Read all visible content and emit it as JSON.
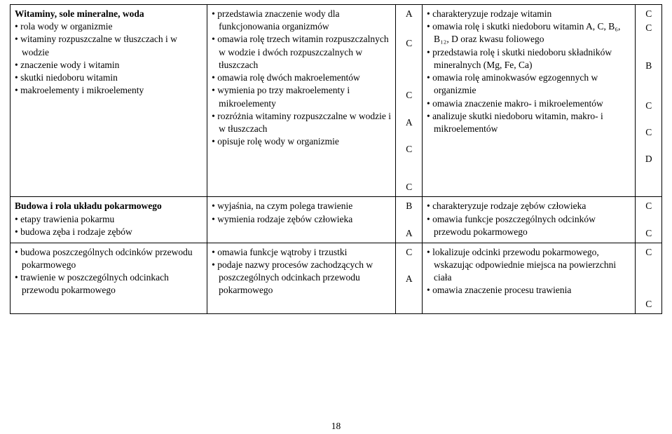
{
  "page_number": "18",
  "rows": [
    {
      "col1": {
        "heading": "Witaminy, sole mineralne, woda",
        "items": [
          "rola wody w organizmie",
          "witaminy rozpuszczalne w tłuszczach i w wodzie",
          "znaczenie wody i witamin",
          "skutki niedoboru witamin",
          "makroelementy i mikroelementy"
        ]
      },
      "col2": {
        "items": [
          "przedstawia znaczenie wody dla funkcjonowania organizmów",
          "omawia rolę trzech witamin rozpuszczalnych w wodzie i dwóch rozpuszczalnych w tłuszczach",
          "omawia rolę dwóch makroelementów",
          "wymienia po trzy makroelementy i mikroelementy",
          "rozróżnia witaminy rozpuszczalne w wodzie i w tłuszczach",
          "opisuje rolę wody w organizmie"
        ]
      },
      "col3": {
        "letters": [
          {
            "t": "A",
            "gap": 0
          },
          {
            "t": "C",
            "gap": 24
          },
          {
            "t": "C",
            "gap": 56
          },
          {
            "t": "A",
            "gap": 20
          },
          {
            "t": "C",
            "gap": 20
          },
          {
            "t": "C",
            "gap": 36
          }
        ]
      },
      "col4": {
        "items": [
          "charakteryzuje rodzaje witamin",
          "omawia rolę i skutki niedoboru witamin A, C, B₆, B₁₂, D oraz kwasu foliowego",
          "przedstawia rolę i skutki niedoboru składników mineralnych (Mg, Fe, Ca)",
          "omawia rolę aminokwasów egzogennych w organizmie",
          "omawia znaczenie makro- i mikroelementów",
          "analizuje skutki niedoboru witamin, makro- i mikroelementów"
        ]
      },
      "col5": {
        "letters": [
          {
            "t": "C",
            "gap": 0
          },
          {
            "t": "C",
            "gap": 2
          },
          {
            "t": "B",
            "gap": 36
          },
          {
            "t": "C",
            "gap": 38
          },
          {
            "t": "C",
            "gap": 20
          },
          {
            "t": "D",
            "gap": 20
          }
        ]
      }
    },
    {
      "col1": {
        "heading": "Budowa i rola układu pokarmowego",
        "items": [
          "etapy trawienia pokarmu",
          "budowa zęba i rodzaje zębów"
        ]
      },
      "col2": {
        "items": [
          "wyjaśnia, na czym polega trawienie",
          "wymienia rodzaje zębów człowieka"
        ]
      },
      "col3": {
        "letters": [
          {
            "t": "B",
            "gap": 0
          },
          {
            "t": "A",
            "gap": 20
          }
        ]
      },
      "col4": {
        "items": [
          "charakteryzuje rodzaje zębów człowieka",
          "omawia funkcje poszczególnych odcinków przewodu pokarmowego"
        ]
      },
      "col5": {
        "letters": [
          {
            "t": "C",
            "gap": 0
          },
          {
            "t": "C",
            "gap": 20
          }
        ]
      }
    },
    {
      "col1": {
        "items": [
          "budowa poszczególnych odcinków przewodu pokarmowego",
          "trawienie w poszczególnych odcinkach przewodu pokarmowego"
        ]
      },
      "col2": {
        "items": [
          "omawia funkcje wątroby i trzustki",
          "podaje nazwy procesów zachodzących w poszczególnych odcinkach przewodu pokarmowego"
        ]
      },
      "col3": {
        "letters": [
          {
            "t": "C",
            "gap": 0
          },
          {
            "t": "A",
            "gap": 20
          }
        ]
      },
      "col4": {
        "items": [
          "lokalizuje odcinki przewodu pokarmowego, wskazując odpowiednie miejsca na powierzchni ciała",
          "omawia znaczenie procesu trawienia"
        ]
      },
      "col5": {
        "letters": [
          {
            "t": "C",
            "gap": 0
          },
          {
            "t": "C",
            "gap": 56
          }
        ]
      }
    }
  ]
}
